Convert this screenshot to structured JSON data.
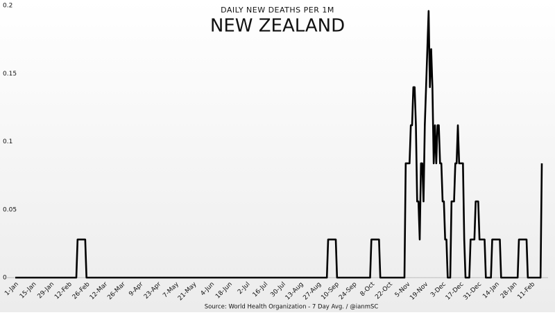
{
  "chart_data": {
    "type": "line",
    "subtitle": "DAILY NEW DEATHS PER 1M",
    "title": "NEW ZEALAND",
    "source": "Source: World Health Organization - 7 Day Avg. / @ianmSC",
    "ylim": [
      0,
      0.2
    ],
    "yticks": [
      0,
      0.05,
      0.1,
      0.15,
      0.2
    ],
    "categories": [
      "1-Jan",
      null,
      null,
      null,
      null,
      null,
      null,
      null,
      null,
      null,
      null,
      null,
      null,
      null,
      "15-Jan",
      null,
      null,
      null,
      null,
      null,
      null,
      null,
      null,
      null,
      null,
      null,
      null,
      null,
      "29-Jan",
      null,
      null,
      null,
      null,
      null,
      null,
      null,
      null,
      null,
      null,
      null,
      null,
      null,
      "12-Feb",
      null,
      null,
      null,
      null,
      null,
      null,
      null,
      null,
      null,
      null,
      null,
      null,
      null,
      "26-Feb",
      null,
      null,
      null,
      null,
      null,
      null,
      null,
      null,
      null,
      null,
      null,
      null,
      null,
      "12-Mar",
      null,
      null,
      null,
      null,
      null,
      null,
      null,
      null,
      null,
      null,
      null,
      null,
      null,
      "26-Mar",
      null,
      null,
      null,
      null,
      null,
      null,
      null,
      null,
      null,
      null,
      null,
      null,
      null,
      "9-Apr",
      null,
      null,
      null,
      null,
      null,
      null,
      null,
      null,
      null,
      null,
      null,
      null,
      null,
      "23-Apr",
      null,
      null,
      null,
      null,
      null,
      null,
      null,
      null,
      null,
      null,
      null,
      null,
      null,
      "7-May",
      null,
      null,
      null,
      null,
      null,
      null,
      null,
      null,
      null,
      null,
      null,
      null,
      null,
      "21-May",
      null,
      null,
      null,
      null,
      null,
      null,
      null,
      null,
      null,
      null,
      null,
      null,
      null,
      "4-Jun",
      null,
      null,
      null,
      null,
      null,
      null,
      null,
      null,
      null,
      null,
      null,
      null,
      null,
      "18-Jun",
      null,
      null,
      null,
      null,
      null,
      null,
      null,
      null,
      null,
      null,
      null,
      null,
      null,
      "2-Jul",
      null,
      null,
      null,
      null,
      null,
      null,
      null,
      null,
      null,
      null,
      null,
      null,
      null,
      "16-Jul",
      null,
      null,
      null,
      null,
      null,
      null,
      null,
      null,
      null,
      null,
      null,
      null,
      null,
      "30-Jul",
      null,
      null,
      null,
      null,
      null,
      null,
      null,
      null,
      null,
      null,
      null,
      null,
      null,
      "13-Aug",
      null,
      null,
      null,
      null,
      null,
      null,
      null,
      null,
      null,
      null,
      null,
      null,
      null,
      "27-Aug",
      null,
      null,
      null,
      null,
      null,
      null,
      null,
      null,
      null,
      null,
      null,
      null,
      null,
      "10-Sep",
      null,
      null,
      null,
      null,
      null,
      null,
      null,
      null,
      null,
      null,
      null,
      null,
      null,
      "24-Sep",
      null,
      null,
      null,
      null,
      null,
      null,
      null,
      null,
      null,
      null,
      null,
      null,
      null,
      "8-Oct",
      null,
      null,
      null,
      null,
      null,
      null,
      null,
      null,
      null,
      null,
      null,
      null,
      null,
      "22-Oct",
      null,
      null,
      null,
      null,
      null,
      null,
      null,
      null,
      null,
      null,
      null,
      null,
      null,
      "5-Nov",
      null,
      null,
      null,
      null,
      null,
      null,
      null,
      null,
      null,
      null,
      null,
      null,
      null,
      "19-Nov",
      null,
      null,
      null,
      null,
      null,
      null,
      null,
      null,
      null,
      null,
      null,
      null,
      null,
      "3-Dec",
      null,
      null,
      null,
      null,
      null,
      null,
      null,
      null,
      null,
      null,
      null,
      null,
      null,
      "17-Dec",
      null,
      null,
      null,
      null,
      null,
      null,
      null,
      null,
      null,
      null,
      null,
      null,
      null,
      "31-Dec",
      null,
      null,
      null,
      null,
      null,
      null,
      null,
      null,
      null,
      null,
      null,
      null,
      null,
      "14-Jan",
      null,
      null,
      null,
      null,
      null,
      null,
      null,
      null,
      null,
      null,
      null,
      null,
      null,
      "28-Jan",
      null,
      null,
      null,
      null,
      null,
      null,
      null,
      null,
      null,
      null,
      null,
      null,
      null,
      "11-Feb",
      null,
      null,
      null,
      null,
      null,
      null,
      null,
      null
    ],
    "series": [
      {
        "color": "#000000",
        "values": [
          0,
          0,
          0,
          0,
          0,
          0,
          0,
          0,
          0,
          0,
          0,
          0,
          0,
          0,
          0,
          0,
          0,
          0,
          0,
          0,
          0,
          0,
          0,
          0,
          0,
          0,
          0,
          0,
          0,
          0,
          0,
          0,
          0,
          0,
          0,
          0,
          0,
          0,
          0,
          0,
          0,
          0,
          0,
          0,
          0,
          0,
          0,
          0,
          0,
          0.028,
          0.028,
          0.028,
          0.028,
          0.028,
          0.028,
          0.028,
          0,
          0,
          0,
          0,
          0,
          0,
          0,
          0,
          0,
          0,
          0,
          0,
          0,
          0,
          0,
          0,
          0,
          0,
          0,
          0,
          0,
          0,
          0,
          0,
          0,
          0,
          0,
          0,
          0,
          0,
          0,
          0,
          0,
          0,
          0,
          0,
          0,
          0,
          0,
          0,
          0,
          0,
          0,
          0,
          0,
          0,
          0,
          0,
          0,
          0,
          0,
          0,
          0,
          0,
          0,
          0,
          0,
          0,
          0,
          0,
          0,
          0,
          0,
          0,
          0,
          0,
          0,
          0,
          0,
          0,
          0,
          0,
          0,
          0,
          0,
          0,
          0,
          0,
          0,
          0,
          0,
          0,
          0,
          0,
          0,
          0,
          0,
          0,
          0,
          0,
          0,
          0,
          0,
          0,
          0,
          0,
          0,
          0,
          0,
          0,
          0,
          0,
          0,
          0,
          0,
          0,
          0,
          0,
          0,
          0,
          0,
          0,
          0,
          0,
          0,
          0,
          0,
          0,
          0,
          0,
          0,
          0,
          0,
          0,
          0,
          0,
          0,
          0,
          0,
          0,
          0,
          0,
          0,
          0,
          0,
          0,
          0,
          0,
          0,
          0,
          0,
          0,
          0,
          0,
          0,
          0,
          0,
          0,
          0,
          0,
          0,
          0,
          0,
          0,
          0,
          0,
          0,
          0,
          0,
          0,
          0,
          0,
          0,
          0,
          0,
          0,
          0,
          0,
          0,
          0,
          0,
          0,
          0,
          0,
          0,
          0,
          0,
          0,
          0,
          0,
          0,
          0,
          0,
          0,
          0,
          0,
          0,
          0,
          0,
          0,
          0.028,
          0.028,
          0.028,
          0.028,
          0.028,
          0.028,
          0.028,
          0,
          0,
          0,
          0,
          0,
          0,
          0,
          0,
          0,
          0,
          0,
          0,
          0,
          0,
          0,
          0,
          0,
          0,
          0,
          0,
          0,
          0,
          0,
          0,
          0,
          0,
          0,
          0.028,
          0.028,
          0.028,
          0.028,
          0.028,
          0.028,
          0.028,
          0,
          0,
          0,
          0,
          0,
          0,
          0,
          0,
          0,
          0,
          0,
          0,
          0,
          0,
          0,
          0,
          0,
          0,
          0,
          0,
          0.084,
          0.084,
          0.084,
          0.084,
          0.112,
          0.112,
          0.14,
          0.14,
          0.112,
          0.056,
          0.056,
          0.028,
          0.084,
          0.084,
          0.056,
          0.112,
          0.14,
          0.168,
          0.196,
          0.14,
          0.168,
          0.14,
          0.084,
          0.112,
          0.084,
          0.112,
          0.112,
          0.084,
          0.084,
          0.056,
          0.056,
          0.028,
          0.028,
          0,
          0,
          0,
          0.056,
          0.056,
          0.056,
          0.084,
          0.084,
          0.112,
          0.084,
          0.084,
          0.084,
          0.084,
          0.028,
          0,
          0,
          0,
          0,
          0.028,
          0.028,
          0.028,
          0.028,
          0.056,
          0.056,
          0.056,
          0.028,
          0.028,
          0.028,
          0.028,
          0.028,
          0,
          0,
          0,
          0,
          0,
          0.028,
          0.028,
          0.028,
          0.028,
          0.028,
          0.028,
          0.028,
          0,
          0,
          0,
          0,
          0,
          0,
          0,
          0,
          0,
          0,
          0,
          0,
          0,
          0,
          0.028,
          0.028,
          0.028,
          0.028,
          0.028,
          0.028,
          0.028,
          0,
          0,
          0,
          0,
          0,
          0,
          0,
          0,
          0,
          0,
          0,
          0.084
        ]
      }
    ]
  }
}
